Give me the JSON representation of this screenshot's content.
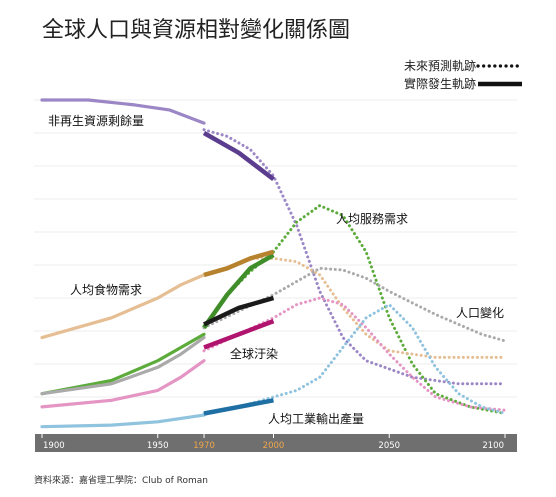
{
  "chart_data": {
    "type": "line",
    "title": "全球人口與資源相對變化關係圖",
    "source": "資料來源：嘉省理工學院：Club of Roman",
    "xlim": [
      1900,
      2100
    ],
    "x_ticks": [
      "1900",
      "1950",
      "1970",
      "2000",
      "2050",
      "2100"
    ],
    "highlight_ticks": [
      "1970",
      "2000"
    ],
    "ylim": [
      0,
      100
    ],
    "legend": {
      "position": "top-right",
      "entries": [
        {
          "label": "未來預測軌跡",
          "style": "dotted"
        },
        {
          "label": "實際發生軌跡",
          "style": "solid"
        }
      ]
    },
    "series": [
      {
        "name": "非再生資源剩餘量",
        "color": "#9b86c6",
        "solid_color": "#5b3d8f",
        "history": [
          [
            1900,
            100
          ],
          [
            1920,
            100
          ],
          [
            1940,
            98.5
          ],
          [
            1955,
            97
          ],
          [
            1970,
            93
          ]
        ],
        "actual": [
          [
            1970,
            90
          ],
          [
            1985,
            84
          ],
          [
            2000,
            76
          ]
        ],
        "projection": [
          [
            1970,
            91
          ],
          [
            1980,
            89
          ],
          [
            1990,
            85
          ],
          [
            2000,
            77
          ],
          [
            2010,
            62
          ],
          [
            2020,
            42
          ],
          [
            2030,
            28
          ],
          [
            2040,
            21
          ],
          [
            2060,
            16
          ],
          [
            2080,
            14
          ],
          [
            2100,
            14
          ]
        ]
      },
      {
        "name": "人均服務需求",
        "color": "#5cab3b",
        "solid_color": "#3f8e2a",
        "history": [
          [
            1900,
            11
          ],
          [
            1930,
            15
          ],
          [
            1950,
            21
          ],
          [
            1960,
            25
          ],
          [
            1970,
            29
          ]
        ],
        "actual": [
          [
            1970,
            31
          ],
          [
            1980,
            41
          ],
          [
            1990,
            49
          ],
          [
            2000,
            53
          ]
        ],
        "projection": [
          [
            1970,
            31
          ],
          [
            1980,
            41
          ],
          [
            1990,
            48
          ],
          [
            2000,
            54
          ],
          [
            2010,
            63
          ],
          [
            2020,
            68
          ],
          [
            2030,
            65
          ],
          [
            2040,
            54
          ],
          [
            2050,
            34
          ],
          [
            2060,
            20
          ],
          [
            2070,
            11
          ],
          [
            2085,
            7
          ],
          [
            2100,
            5
          ]
        ]
      },
      {
        "name": "人均食物需求",
        "color": "#e6be94",
        "solid_color": "#b7822e",
        "history": [
          [
            1900,
            28
          ],
          [
            1930,
            34
          ],
          [
            1950,
            40
          ],
          [
            1960,
            44
          ],
          [
            1970,
            47
          ]
        ],
        "actual": [
          [
            1970,
            47
          ],
          [
            1980,
            49
          ],
          [
            1990,
            52
          ],
          [
            2000,
            54
          ]
        ],
        "projection": [
          [
            1970,
            47
          ],
          [
            1980,
            49
          ],
          [
            1990,
            52
          ],
          [
            2000,
            52
          ],
          [
            2010,
            51
          ],
          [
            2020,
            47
          ],
          [
            2030,
            37
          ],
          [
            2040,
            29
          ],
          [
            2050,
            24
          ],
          [
            2070,
            22
          ],
          [
            2090,
            22
          ],
          [
            2100,
            22
          ]
        ]
      },
      {
        "name": "人口變化",
        "color": "#aaaaaa",
        "solid_color": "#1a1a1a",
        "history": [
          [
            1900,
            11
          ],
          [
            1930,
            14
          ],
          [
            1950,
            19
          ],
          [
            1960,
            23
          ],
          [
            1970,
            28
          ]
        ],
        "actual": [
          [
            1970,
            32
          ],
          [
            1985,
            37
          ],
          [
            2000,
            40
          ]
        ],
        "projection": [
          [
            1970,
            31
          ],
          [
            1985,
            36
          ],
          [
            2000,
            41
          ],
          [
            2010,
            45
          ],
          [
            2020,
            49
          ],
          [
            2030,
            48.5
          ],
          [
            2040,
            46
          ],
          [
            2050,
            42
          ],
          [
            2070,
            35
          ],
          [
            2090,
            29
          ],
          [
            2100,
            27
          ]
        ]
      },
      {
        "name": "全球汙染",
        "color": "#e495c4",
        "solid_color": "#b0146f",
        "history": [
          [
            1900,
            7
          ],
          [
            1930,
            9
          ],
          [
            1950,
            12
          ],
          [
            1960,
            16
          ],
          [
            1970,
            21
          ]
        ],
        "actual": [
          [
            1970,
            25
          ],
          [
            1985,
            29
          ],
          [
            2000,
            33
          ]
        ],
        "projection": [
          [
            1970,
            24
          ],
          [
            1985,
            29
          ],
          [
            2000,
            34
          ],
          [
            2010,
            38
          ],
          [
            2020,
            40
          ],
          [
            2030,
            38
          ],
          [
            2040,
            31
          ],
          [
            2050,
            23
          ],
          [
            2060,
            16
          ],
          [
            2070,
            10
          ],
          [
            2085,
            7
          ],
          [
            2100,
            6
          ]
        ]
      },
      {
        "name": "人均工業輸出產量",
        "color": "#8fc3de",
        "solid_color": "#1e6fa3",
        "history": [
          [
            1900,
            1
          ],
          [
            1930,
            1.5
          ],
          [
            1950,
            2.5
          ],
          [
            1960,
            3.5
          ],
          [
            1970,
            4.5
          ]
        ],
        "actual": [
          [
            1970,
            5
          ],
          [
            1985,
            7
          ],
          [
            2000,
            9
          ]
        ],
        "projection": [
          [
            1970,
            5
          ],
          [
            1985,
            7
          ],
          [
            2000,
            10
          ],
          [
            2010,
            12
          ],
          [
            2020,
            16
          ],
          [
            2030,
            25
          ],
          [
            2040,
            34
          ],
          [
            2050,
            38
          ],
          [
            2060,
            31
          ],
          [
            2070,
            19
          ],
          [
            2080,
            11
          ],
          [
            2090,
            7
          ],
          [
            2100,
            5
          ]
        ]
      }
    ]
  }
}
